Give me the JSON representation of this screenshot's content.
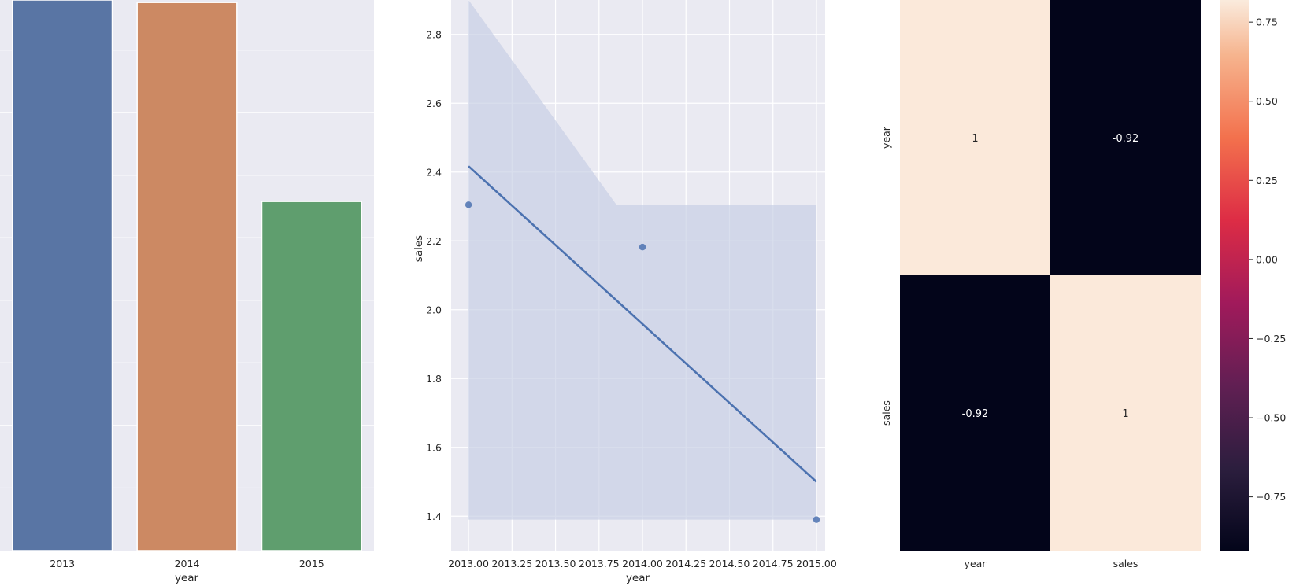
{
  "colors": {
    "panel_bg": "#eaeaf2",
    "grid": "#ffffff",
    "bar_2013": "#5975a4",
    "bar_2014": "#cc8963",
    "bar_2015": "#5f9e6e",
    "regression": "#4c72b0",
    "ci_band": "#c4cde3",
    "heat_high": "#fbe9da",
    "heat_low": "#03051a"
  },
  "chart_data": [
    {
      "type": "bar",
      "xlabel": "year",
      "ylabel": "",
      "categories": [
        "2013",
        "2014",
        "2015"
      ],
      "values": [
        4.41,
        4.38,
        2.79
      ],
      "ylim": [
        0,
        4.4
      ],
      "grid": true
    },
    {
      "type": "scatter",
      "xlabel": "year",
      "ylabel": "sales",
      "x": [
        2013.0,
        2014.0,
        2015.0
      ],
      "y": [
        2.305,
        2.182,
        1.39
      ],
      "regression": {
        "x": [
          2013.0,
          2015.0
        ],
        "y": [
          2.417,
          1.5
        ]
      },
      "ci_band": {
        "x": [
          2013.0,
          2013.85,
          2015.0
        ],
        "upper": [
          3.2,
          2.305,
          2.305
        ],
        "lower": [
          1.39,
          1.39,
          1.39
        ]
      },
      "xlim": [
        2012.9,
        2015.05
      ],
      "ylim": [
        1.3,
        2.9
      ],
      "xticks": [
        "2013.00",
        "2013.25",
        "2013.50",
        "2013.75",
        "2014.00",
        "2014.25",
        "2014.50",
        "2014.75",
        "2015.00"
      ],
      "yticks": [
        "1.4",
        "1.6",
        "1.8",
        "2.0",
        "2.2",
        "2.4",
        "2.6",
        "2.8"
      ],
      "grid": true
    },
    {
      "type": "heatmap",
      "rows": [
        "year",
        "sales"
      ],
      "cols": [
        "year",
        "sales"
      ],
      "values": [
        [
          1,
          -0.92
        ],
        [
          -0.92,
          1
        ]
      ],
      "annotations": [
        [
          "1",
          "-0.92"
        ],
        [
          "-0.92",
          "1"
        ]
      ],
      "colorbar": {
        "ticks": [
          "0.75",
          "0.50",
          "0.25",
          "0.00",
          "−0.25",
          "−0.50",
          "−0.75"
        ],
        "range": [
          -0.92,
          0.82
        ]
      }
    }
  ]
}
